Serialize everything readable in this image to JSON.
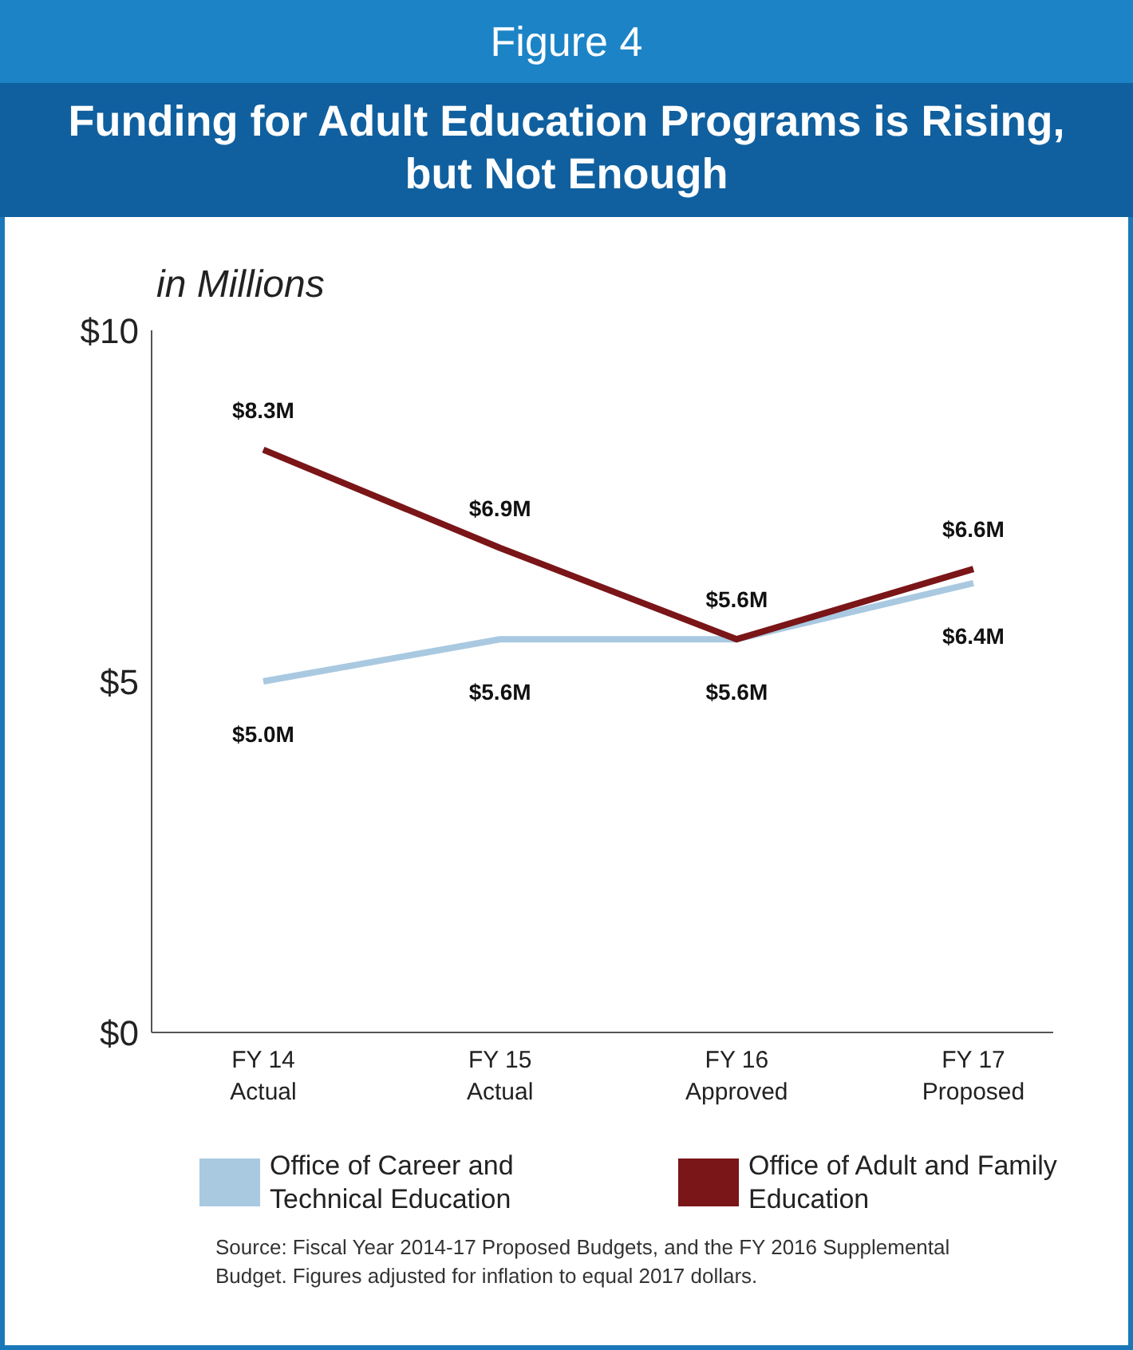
{
  "chart_data": {
    "type": "line",
    "subtitle": "Figure 4",
    "title": "Funding for Adult Education Programs is Rising, but Not Enough",
    "ylabel": "in Millions",
    "categories": [
      "FY 14\nActual",
      "FY 15\nActual",
      "FY 16\nApproved",
      "FY 17\nProposed"
    ],
    "series": [
      {
        "name": "Office of Career and Technical Education",
        "color": "#a9c9e1",
        "values": [
          5.0,
          5.6,
          5.6,
          6.4
        ],
        "value_labels": [
          "$5.0M",
          "$5.6M",
          "$5.6M",
          "$6.4M"
        ]
      },
      {
        "name": "Office of Adult and Family Education",
        "color": "#7a1518",
        "values": [
          8.3,
          6.9,
          5.6,
          6.6
        ],
        "value_labels": [
          "$8.3M",
          "$6.9M",
          "$5.6M",
          "$6.6M"
        ]
      }
    ],
    "ylim": [
      0,
      10
    ],
    "yticks": [
      {
        "value": 0,
        "label": "$0"
      },
      {
        "value": 5,
        "label": "$5"
      },
      {
        "value": 10,
        "label": "$10"
      }
    ],
    "grid": false,
    "legend": "bottom",
    "marker": "none",
    "line_style": "solid",
    "annotations": [
      "Source: Fiscal Year 2014-17 Proposed Budgets, and  the FY 2016 Supplemental Budget. Figures adjusted for inflation to equal 2017 dollars."
    ]
  }
}
